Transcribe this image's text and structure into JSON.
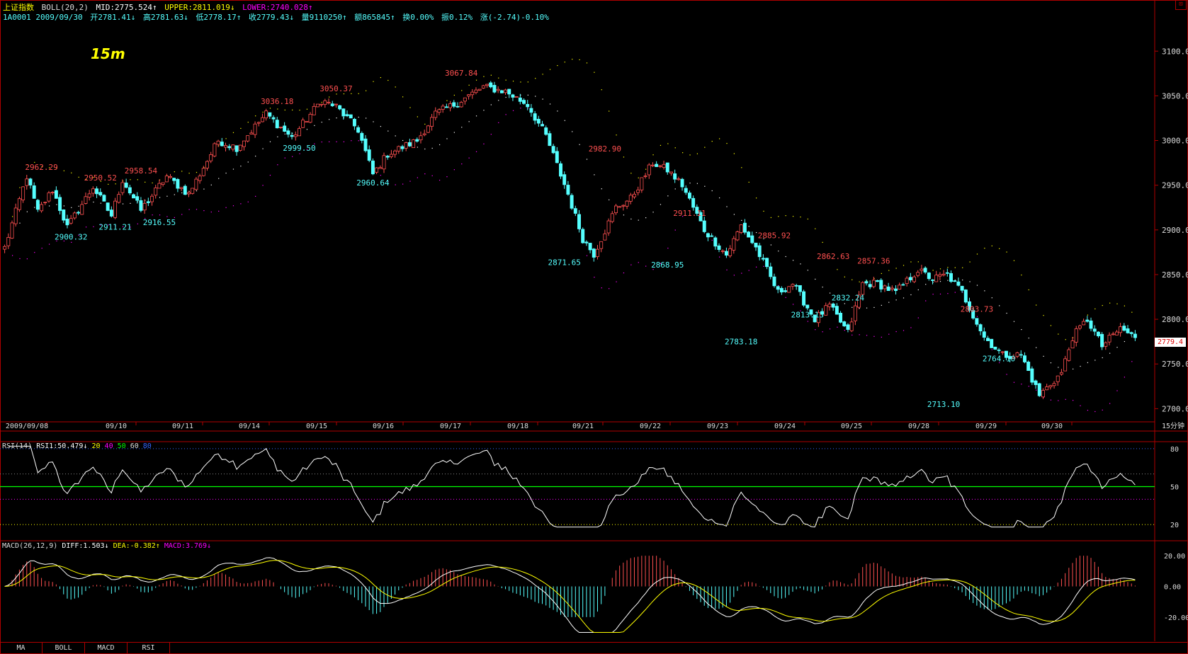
{
  "header": {
    "index_name": "上证指数",
    "boll_label": "BOLL(20,2)",
    "mid": "MID:2775.524↑",
    "upper": "UPPER:2811.019↓",
    "lower": "LOWER:2740.028↑",
    "quote": {
      "code_date": "1A0001 2009/09/30",
      "open": "开2781.41↓",
      "high": "高2781.63↓",
      "low": "低2778.17↑",
      "close": "收2779.43↓",
      "volume": "量9110250↑",
      "amount": "额865845↑",
      "turnover": "换0.00%",
      "amplitude": "振0.12%",
      "change": "涨(-2.74)-0.10%"
    }
  },
  "period_stamp": "15m",
  "period_label": "15分钟",
  "close_icon": "close-icon",
  "last_price_tag": "2779.4",
  "colors": {
    "up": "#ff5050",
    "down": "#55ffff",
    "boll_mid": "#ffffff",
    "boll_upper": "#ffff00",
    "boll_lower": "#ff00ff",
    "frame": "#b00000",
    "rsi_mid": "#00ff00",
    "macd_dea": "#ffff00",
    "macd_diff": "#ffffff"
  },
  "price_axis": {
    "ticks": [
      "3100.0",
      "3050.0",
      "3000.0",
      "2950.0",
      "2900.0",
      "2850.0",
      "2800.0",
      "2750.0",
      "2700.0"
    ]
  },
  "date_axis": [
    "2009/09/08",
    "09/10",
    "09/11",
    "09/14",
    "09/15",
    "09/16",
    "09/17",
    "09/18",
    "09/21",
    "09/22",
    "09/23",
    "09/24",
    "09/25",
    "09/28",
    "09/29",
    "09/30"
  ],
  "rsi_header": {
    "name": "RSI(14)",
    "value": "RSI1:50.479↓",
    "levels": [
      "20",
      "40",
      "50",
      "60",
      "80"
    ]
  },
  "rsi_axis": [
    "80",
    "50",
    "20"
  ],
  "macd_header": {
    "name": "MACD(26,12,9)",
    "diff": "DIFF:1.503↓",
    "dea": "DEA:-0.382↑",
    "macd": "MACD:3.769↓"
  },
  "macd_axis": [
    "20.00",
    "0.00",
    "-20.00"
  ],
  "tabs": [
    "MA",
    "BOLL",
    "MACD",
    "RSI"
  ],
  "chart_data": {
    "type": "candlestick",
    "title": "上证指数 15分钟",
    "price_range": [
      2690,
      3120
    ],
    "anchors": [
      {
        "i": 0,
        "p": 2880
      },
      {
        "i": 6,
        "p": 2960
      },
      {
        "i": 9,
        "p": 2920
      },
      {
        "i": 13,
        "p": 2945
      },
      {
        "i": 17,
        "p": 2903
      },
      {
        "i": 24,
        "p": 2948
      },
      {
        "i": 29,
        "p": 2916
      },
      {
        "i": 32,
        "p": 2956
      },
      {
        "i": 37,
        "p": 2922
      },
      {
        "i": 44,
        "p": 2960
      },
      {
        "i": 50,
        "p": 2940
      },
      {
        "i": 58,
        "p": 3000
      },
      {
        "i": 63,
        "p": 2992
      },
      {
        "i": 71,
        "p": 3030
      },
      {
        "i": 78,
        "p": 3003
      },
      {
        "i": 86,
        "p": 3045
      },
      {
        "i": 90,
        "p": 3038
      },
      {
        "i": 96,
        "p": 3012
      },
      {
        "i": 100,
        "p": 2962
      },
      {
        "i": 104,
        "p": 2985
      },
      {
        "i": 112,
        "p": 3000
      },
      {
        "i": 117,
        "p": 3030
      },
      {
        "i": 122,
        "p": 3040
      },
      {
        "i": 130,
        "p": 3060
      },
      {
        "i": 136,
        "p": 3055
      },
      {
        "i": 142,
        "p": 3040
      },
      {
        "i": 147,
        "p": 3005
      },
      {
        "i": 153,
        "p": 2940
      },
      {
        "i": 157,
        "p": 2890
      },
      {
        "i": 160,
        "p": 2873
      },
      {
        "i": 166,
        "p": 2925
      },
      {
        "i": 170,
        "p": 2935
      },
      {
        "i": 176,
        "p": 2975
      },
      {
        "i": 180,
        "p": 2967
      },
      {
        "i": 184,
        "p": 2950
      },
      {
        "i": 190,
        "p": 2900
      },
      {
        "i": 196,
        "p": 2872
      },
      {
        "i": 200,
        "p": 2905
      },
      {
        "i": 204,
        "p": 2880
      },
      {
        "i": 210,
        "p": 2830
      },
      {
        "i": 214,
        "p": 2840
      },
      {
        "i": 220,
        "p": 2800
      },
      {
        "i": 224,
        "p": 2815
      },
      {
        "i": 229,
        "p": 2785
      },
      {
        "i": 233,
        "p": 2840
      },
      {
        "i": 237,
        "p": 2840
      },
      {
        "i": 242,
        "p": 2830
      },
      {
        "i": 248,
        "p": 2855
      },
      {
        "i": 252,
        "p": 2845
      },
      {
        "i": 256,
        "p": 2850
      },
      {
        "i": 260,
        "p": 2830
      },
      {
        "i": 266,
        "p": 2780
      },
      {
        "i": 271,
        "p": 2760
      },
      {
        "i": 276,
        "p": 2760
      },
      {
        "i": 281,
        "p": 2715
      },
      {
        "i": 287,
        "p": 2740
      },
      {
        "i": 290,
        "p": 2780
      },
      {
        "i": 294,
        "p": 2800
      },
      {
        "i": 298,
        "p": 2770
      },
      {
        "i": 303,
        "p": 2790
      },
      {
        "i": 307,
        "p": 2779.43
      }
    ],
    "high_low_labels": [
      {
        "text": "2962.29",
        "i": 10,
        "p": 2962.29,
        "kind": "high"
      },
      {
        "text": "2900.32",
        "i": 18,
        "p": 2900.32,
        "kind": "low"
      },
      {
        "text": "2950.52",
        "i": 26,
        "p": 2950.52,
        "kind": "high"
      },
      {
        "text": "2911.21",
        "i": 30,
        "p": 2911.21,
        "kind": "low"
      },
      {
        "text": "2958.54",
        "i": 37,
        "p": 2958.54,
        "kind": "high"
      },
      {
        "text": "2916.55",
        "i": 42,
        "p": 2916.55,
        "kind": "low"
      },
      {
        "text": "3036.18",
        "i": 74,
        "p": 3036.18,
        "kind": "high"
      },
      {
        "text": "2999.50",
        "i": 80,
        "p": 2999.5,
        "kind": "low"
      },
      {
        "text": "3050.37",
        "i": 90,
        "p": 3050.37,
        "kind": "high"
      },
      {
        "text": "2960.64",
        "i": 100,
        "p": 2960.64,
        "kind": "low"
      },
      {
        "text": "3067.84",
        "i": 124,
        "p": 3067.84,
        "kind": "high"
      },
      {
        "text": "2871.65",
        "i": 152,
        "p": 2871.65,
        "kind": "low"
      },
      {
        "text": "2982.90",
        "i": 163,
        "p": 2982.9,
        "kind": "high"
      },
      {
        "text": "2911.11",
        "i": 186,
        "p": 2911.11,
        "kind": "high"
      },
      {
        "text": "2868.95",
        "i": 180,
        "p": 2868.95,
        "kind": "low"
      },
      {
        "text": "2885.92",
        "i": 209,
        "p": 2885.92,
        "kind": "high"
      },
      {
        "text": "2783.18",
        "i": 200,
        "p": 2783.18,
        "kind": "low"
      },
      {
        "text": "2862.63",
        "i": 225,
        "p": 2862.63,
        "kind": "high"
      },
      {
        "text": "2857.36",
        "i": 236,
        "p": 2857.36,
        "kind": "high"
      },
      {
        "text": "2813.13",
        "i": 218,
        "p": 2813.13,
        "kind": "low"
      },
      {
        "text": "2832.24",
        "i": 229,
        "p": 2832.24,
        "kind": "low"
      },
      {
        "text": "2803.73",
        "i": 264,
        "p": 2803.73,
        "kind": "high"
      },
      {
        "text": "2713.10",
        "i": 255,
        "p": 2713.1,
        "kind": "low"
      },
      {
        "text": "2764.10",
        "i": 270,
        "p": 2764.1,
        "kind": "low"
      }
    ],
    "rsi_range": [
      15,
      85
    ],
    "rsi_levels": [
      20,
      40,
      50,
      60,
      80
    ],
    "macd_range": [
      -33,
      27
    ]
  }
}
